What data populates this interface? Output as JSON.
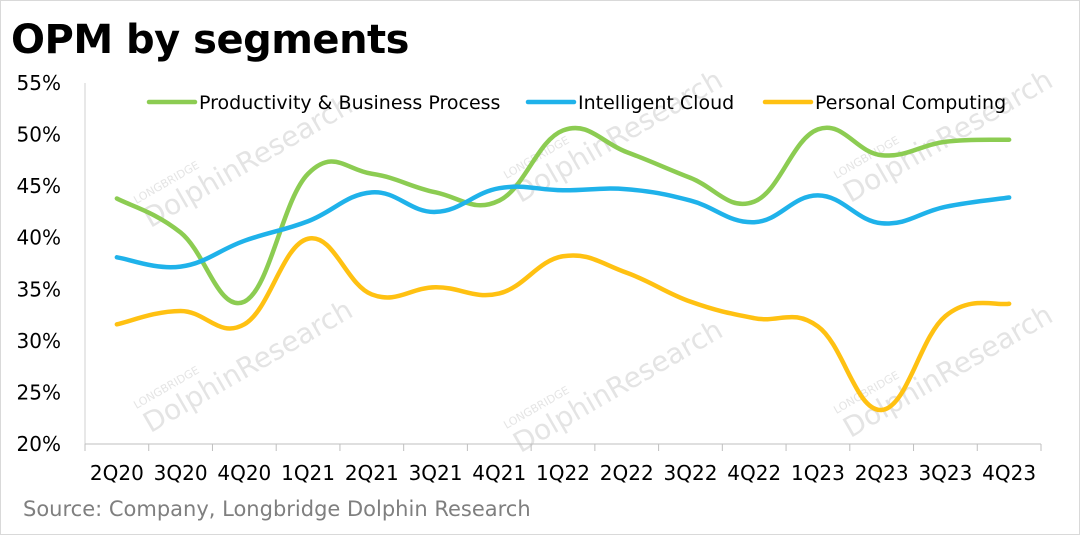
{
  "header": {
    "title": "OPM by segments"
  },
  "footer": {
    "source": "Source:  Company, Longbridge Dolphin Research"
  },
  "watermark": {
    "brand": "LONGBRIDGE",
    "name": "DolphinResearch"
  },
  "chart_data": {
    "type": "line",
    "title": "OPM by segments",
    "xlabel": "",
    "ylabel": "",
    "ylim": [
      20,
      55
    ],
    "ytick_step": 5,
    "ytick_suffix": "%",
    "grid": false,
    "smooth": true,
    "legend_position": "top",
    "categories": [
      "2Q20",
      "3Q20",
      "4Q20",
      "1Q21",
      "2Q21",
      "3Q21",
      "4Q21",
      "1Q22",
      "2Q22",
      "3Q22",
      "4Q22",
      "1Q23",
      "2Q23",
      "3Q23",
      "4Q23"
    ],
    "series": [
      {
        "name": "Productivity & Business Process",
        "color": "#8ccc52",
        "values": [
          43.8,
          40.5,
          33.8,
          46.2,
          46.2,
          44.4,
          43.6,
          50.4,
          48.3,
          45.8,
          43.5,
          50.5,
          48.0,
          49.3,
          49.5
        ]
      },
      {
        "name": "Intelligent Cloud",
        "color": "#1fb2ea",
        "values": [
          38.1,
          37.2,
          39.7,
          41.6,
          44.4,
          42.5,
          44.8,
          44.6,
          44.7,
          43.6,
          41.5,
          44.1,
          41.4,
          43.0,
          43.9
        ]
      },
      {
        "name": "Personal Computing",
        "color": "#ffc112",
        "values": [
          31.6,
          32.9,
          31.6,
          39.9,
          34.5,
          35.2,
          34.6,
          38.2,
          36.6,
          33.8,
          32.2,
          31.4,
          23.3,
          32.4,
          33.6
        ]
      }
    ]
  }
}
